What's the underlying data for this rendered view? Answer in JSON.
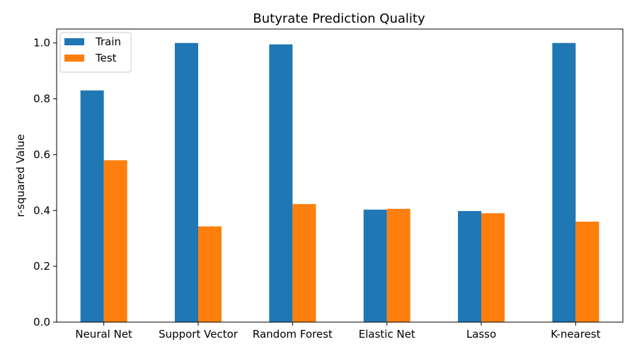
{
  "chart_data": {
    "type": "bar",
    "title": "Butyrate Prediction Quality",
    "xlabel": "",
    "ylabel": "r-squared Value",
    "categories": [
      "Neural Net",
      "Support Vector",
      "Random Forest",
      "Elastic Net",
      "Lasso",
      "K-nearest"
    ],
    "series": [
      {
        "name": "Train",
        "color": "#1f77b4",
        "values": [
          0.83,
          1.0,
          0.995,
          0.403,
          0.398,
          1.0
        ]
      },
      {
        "name": "Test",
        "color": "#ff7f0e",
        "values": [
          0.58,
          0.343,
          0.423,
          0.406,
          0.39,
          0.36
        ]
      }
    ],
    "ylim": [
      0,
      1.05
    ],
    "yticks": [
      0.0,
      0.2,
      0.4,
      0.6,
      0.8,
      1.0
    ],
    "ytick_labels": [
      "0.0",
      "0.2",
      "0.4",
      "0.6",
      "0.8",
      "1.0"
    ],
    "grid": false,
    "legend_position": "top-left"
  }
}
